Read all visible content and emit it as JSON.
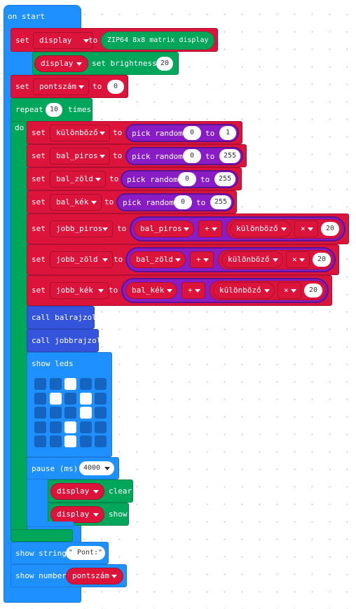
{
  "on_start": {
    "label": "on start"
  },
  "b1": {
    "set": "set",
    "var": "display",
    "to": "to",
    "value": "ZIP64 8x8 matrix display"
  },
  "b2": {
    "var": "display",
    "label": "set brightness",
    "value": "20"
  },
  "b3": {
    "set": "set",
    "var": "pontszám",
    "to": "to",
    "value": "0"
  },
  "repeat": {
    "label": "repeat",
    "count": "10",
    "times": "times",
    "do": "do"
  },
  "r1": {
    "set": "set",
    "var": "különböző",
    "to": "to",
    "fn": "pick random",
    "a": "0",
    "mid": "to",
    "b": "1"
  },
  "r2": {
    "set": "set",
    "var": "bal_piros",
    "to": "to",
    "fn": "pick random",
    "a": "0",
    "mid": "to",
    "b": "255"
  },
  "r3": {
    "set": "set",
    "var": "bal_zöld",
    "to": "to",
    "fn": "pick random",
    "a": "0",
    "mid": "to",
    "b": "255"
  },
  "r4": {
    "set": "set",
    "var": "bal_kék",
    "to": "to",
    "fn": "pick random",
    "a": "0",
    "mid": "to",
    "b": "255"
  },
  "r5": {
    "set": "set",
    "var": "jobb_piros",
    "to": "to",
    "left": "bal_piros",
    "op1": "+",
    "mid": "különböző",
    "op2": "×",
    "val": "20"
  },
  "r6": {
    "set": "set",
    "var": "jobb_zöld",
    "to": "to",
    "left": "bal_zöld",
    "op1": "+",
    "mid": "különböző",
    "op2": "×",
    "val": "20"
  },
  "r7": {
    "set": "set",
    "var": "jobb_kék",
    "to": "to",
    "left": "bal_kék",
    "op1": "+",
    "mid": "különböző",
    "op2": "×",
    "val": "20"
  },
  "call1": {
    "label": "call balrajzol"
  },
  "call2": {
    "label": "call jobbrajzol"
  },
  "show_leds": {
    "label": "show leds",
    "grid": [
      [
        0,
        0,
        1,
        0,
        0
      ],
      [
        0,
        1,
        0,
        1,
        0
      ],
      [
        0,
        0,
        0,
        1,
        0
      ],
      [
        0,
        0,
        1,
        0,
        0
      ],
      [
        0,
        0,
        1,
        0,
        0
      ]
    ]
  },
  "pause": {
    "label": "pause (ms)",
    "value": "4000"
  },
  "clear": {
    "var": "display",
    "label": "clear"
  },
  "show": {
    "var": "display",
    "label": "show"
  },
  "show_string": {
    "label": "show string",
    "value": "\" Pont:\""
  },
  "show_number": {
    "label": "show number",
    "var": "pontszám"
  },
  "colors": {
    "basic": "#1e90ff",
    "variables": "#dc143c",
    "neopixel": "#00a65a",
    "math": "#8a1cc6",
    "functions": "#3455db",
    "loops": "#00a65a"
  }
}
